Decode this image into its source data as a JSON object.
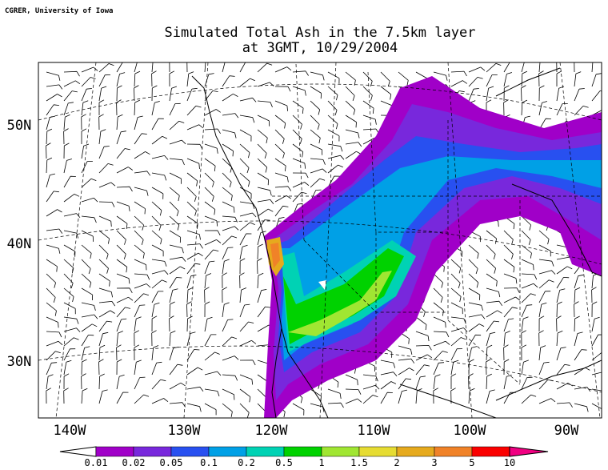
{
  "credit": "CGRER, University of Iowa",
  "title": [
    "Simulated Total Ash in the 7.5km layer",
    "at 3GMT, 10/29/2004"
  ],
  "map": {
    "lon_labels": [
      "140W",
      "130W",
      "120W",
      "110W",
      "100W",
      "90W"
    ],
    "lat_labels": [
      "50N",
      "40N",
      "30N"
    ]
  },
  "colorbar": {
    "labels": [
      "0.01",
      "0.02",
      "0.05",
      "0.1",
      "0.2",
      "0.5",
      "1",
      "1.5",
      "2",
      "3",
      "5",
      "10"
    ],
    "colors": [
      "#ffffff",
      "#a000c8",
      "#7828dc",
      "#2850f0",
      "#00a0e6",
      "#00d2b4",
      "#00d200",
      "#a0e632",
      "#e6dc32",
      "#e6aa1e",
      "#f08228",
      "#fa0000",
      "#f00082"
    ]
  }
}
